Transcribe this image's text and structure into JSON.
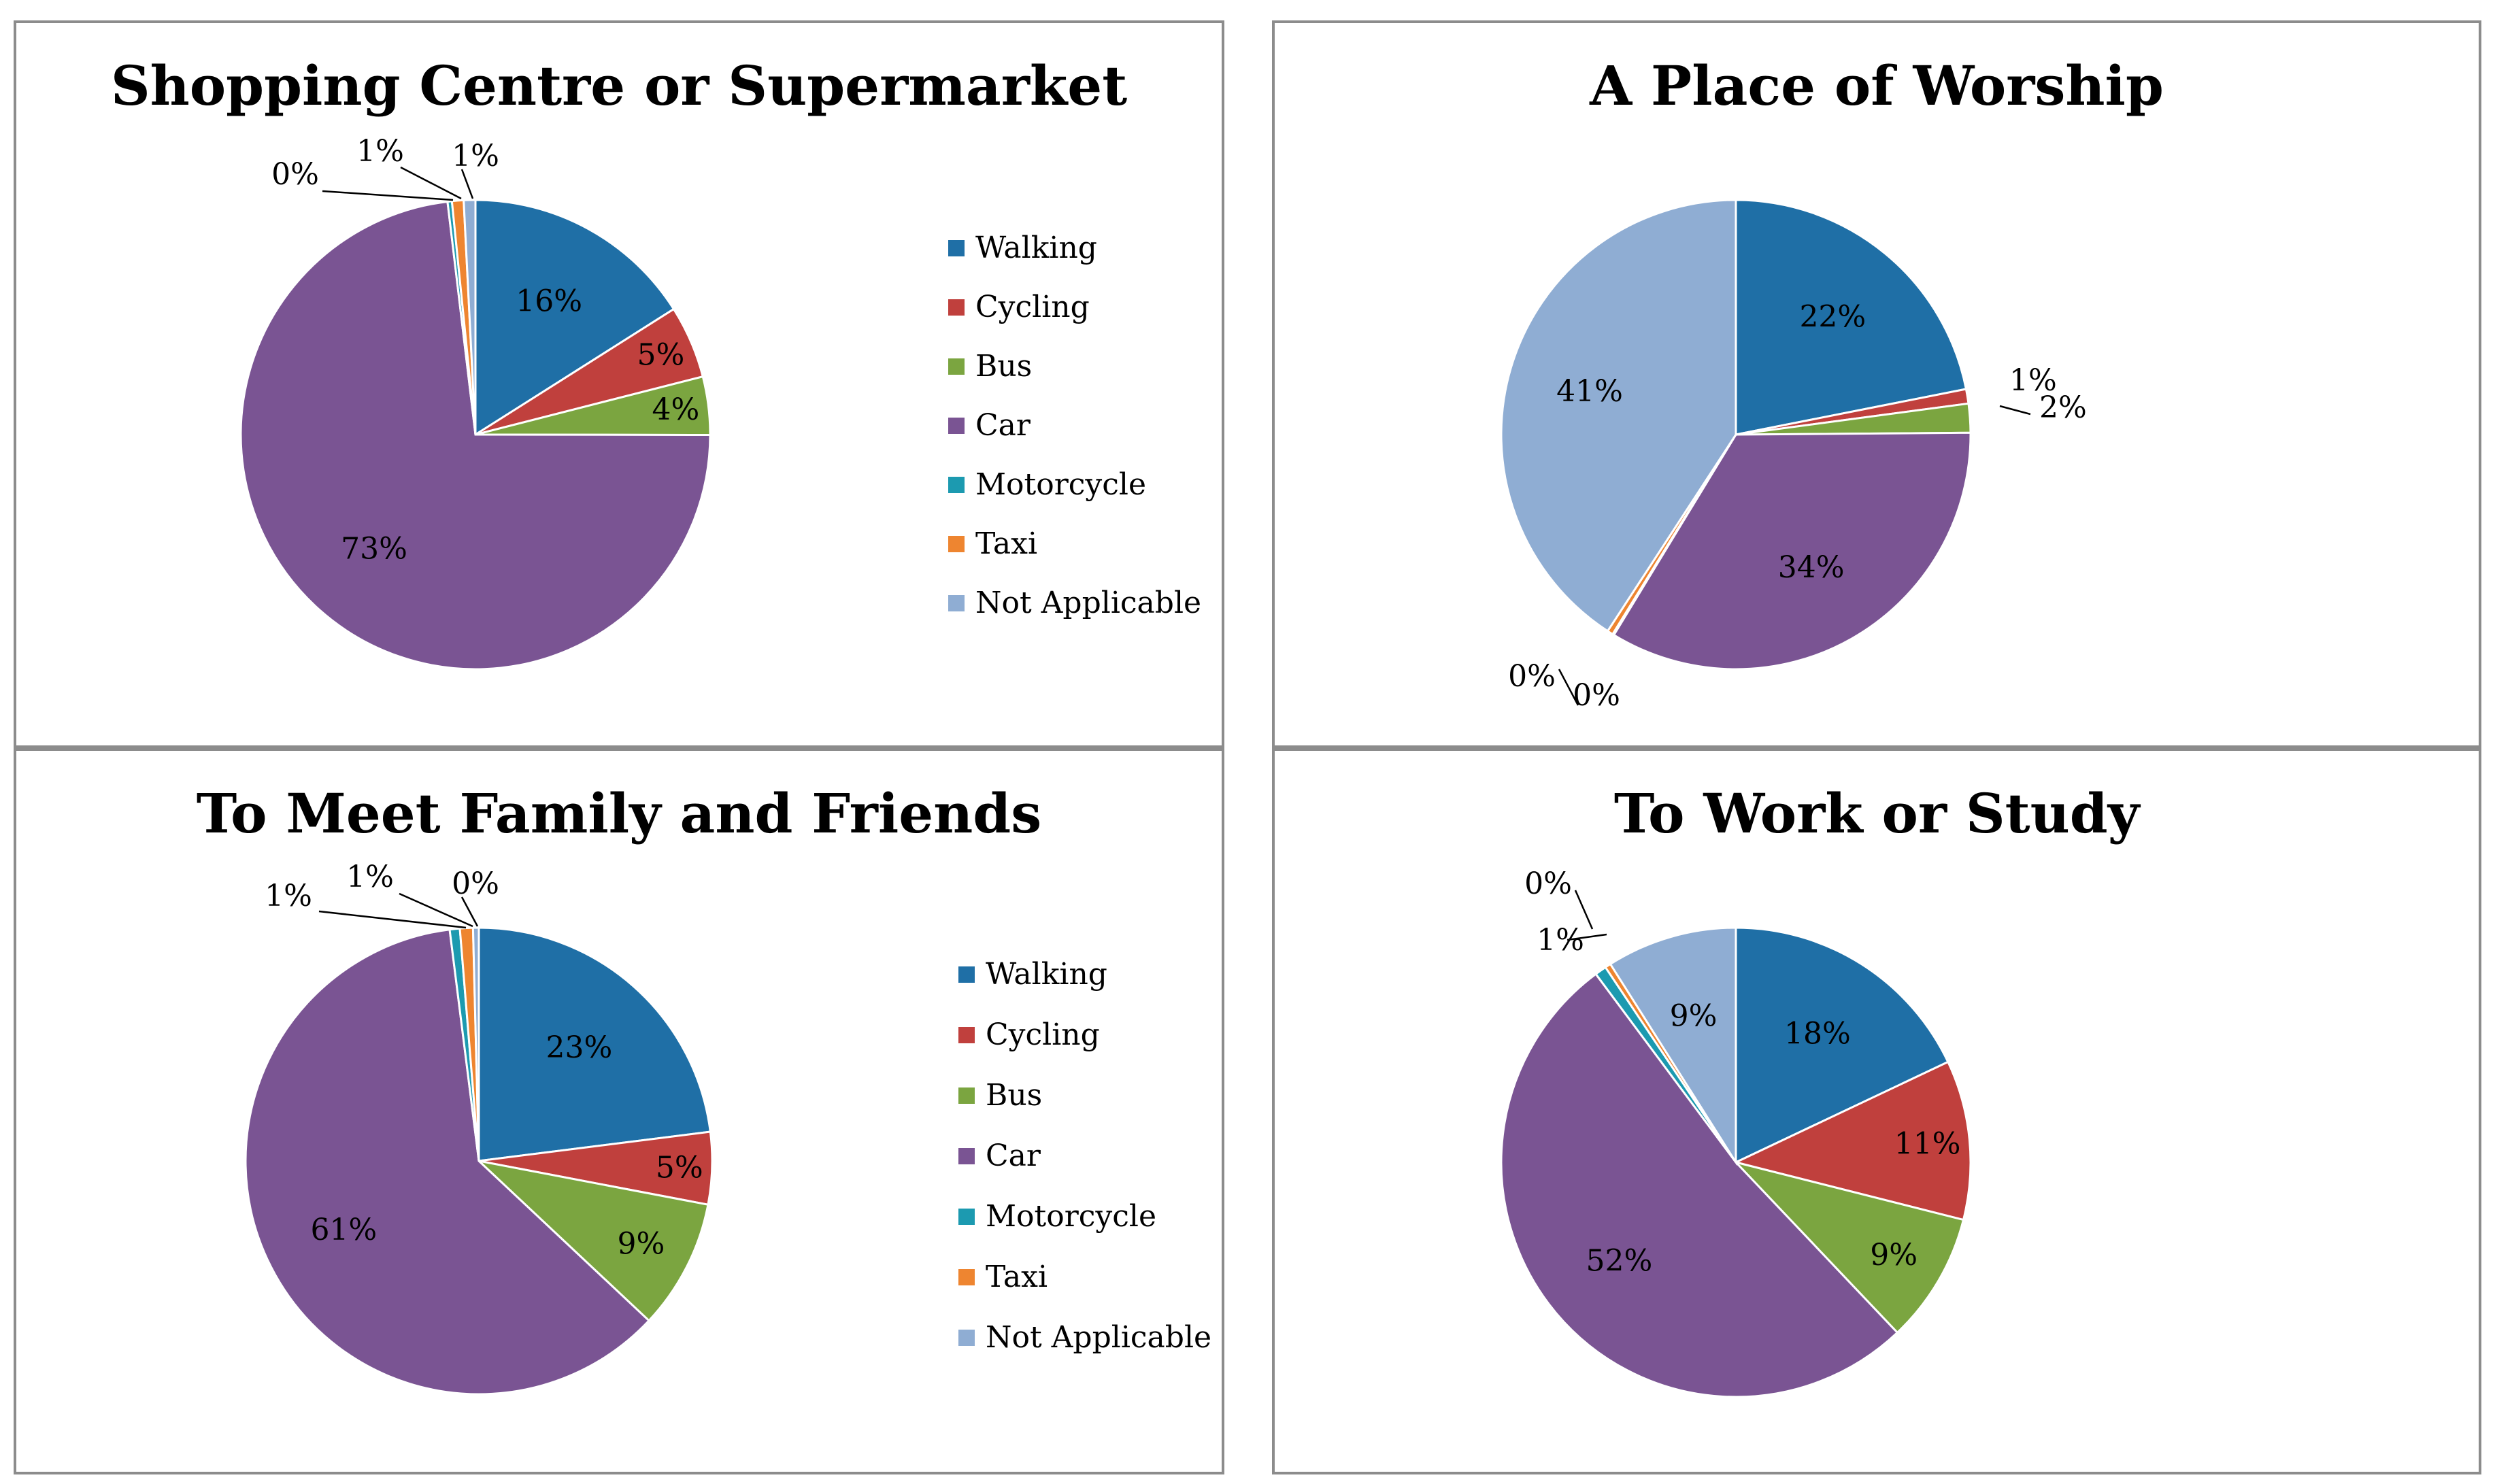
{
  "chart_data": [
    {
      "type": "pie",
      "title": "Shopping Centre or Supermarket",
      "categories": [
        "Walking",
        "Cycling",
        "Bus",
        "Car",
        "Motorcycle",
        "Taxi",
        "Not Applicable"
      ],
      "values": [
        16,
        5,
        4,
        73,
        0.3,
        0.8,
        0.8
      ],
      "labels": [
        "16%",
        "5%",
        "4%",
        "73%",
        "0%",
        "1%",
        "1%"
      ],
      "colors": [
        "#1f6fa6",
        "#c0403d",
        "#7ba540",
        "#7a5493",
        "#1c9ab0",
        "#ee8530",
        "#8fadd3"
      ],
      "legend_position": "right"
    },
    {
      "type": "pie",
      "title": "A Place of Worship",
      "categories": [
        "Walking",
        "Cycling",
        "Bus",
        "Car",
        "Motorcycle",
        "Taxi",
        "Not Applicable"
      ],
      "values": [
        22,
        1,
        2,
        34,
        0.1,
        0.4,
        41
      ],
      "labels": [
        "22%",
        "1%",
        "2%",
        "34%",
        "0%",
        "0%",
        "41%"
      ],
      "colors": [
        "#1f6fa6",
        "#c0403d",
        "#7ba540",
        "#7a5493",
        "#1c9ab0",
        "#ee8530",
        "#8fadd3"
      ],
      "legend_position": "right"
    },
    {
      "type": "pie",
      "title": "To Meet Family and Friends",
      "categories": [
        "Walking",
        "Cycling",
        "Bus",
        "Car",
        "Motorcycle",
        "Taxi",
        "Not Applicable"
      ],
      "values": [
        23,
        5,
        9,
        61,
        0.7,
        0.9,
        0.4
      ],
      "labels": [
        "23%",
        "5%",
        "9%",
        "61%",
        "1%",
        "1%",
        "0%"
      ],
      "colors": [
        "#1f6fa6",
        "#c0403d",
        "#7ba540",
        "#7a5493",
        "#1c9ab0",
        "#ee8530",
        "#8fadd3"
      ],
      "legend_position": "right"
    },
    {
      "type": "pie",
      "title": "To Work or Study",
      "categories": [
        "Walking",
        "Cycling",
        "Bus",
        "Car",
        "Motorcycle",
        "Taxi",
        "Not Applicable"
      ],
      "values": [
        18,
        11,
        9,
        52,
        0.8,
        0.4,
        9
      ],
      "labels": [
        "18%",
        "11%",
        "9%",
        "52%",
        "1%",
        "0%",
        "9%"
      ],
      "colors": [
        "#1f6fa6",
        "#c0403d",
        "#7ba540",
        "#7a5493",
        "#1c9ab0",
        "#ee8530",
        "#8fadd3"
      ],
      "legend_position": "right"
    }
  ]
}
